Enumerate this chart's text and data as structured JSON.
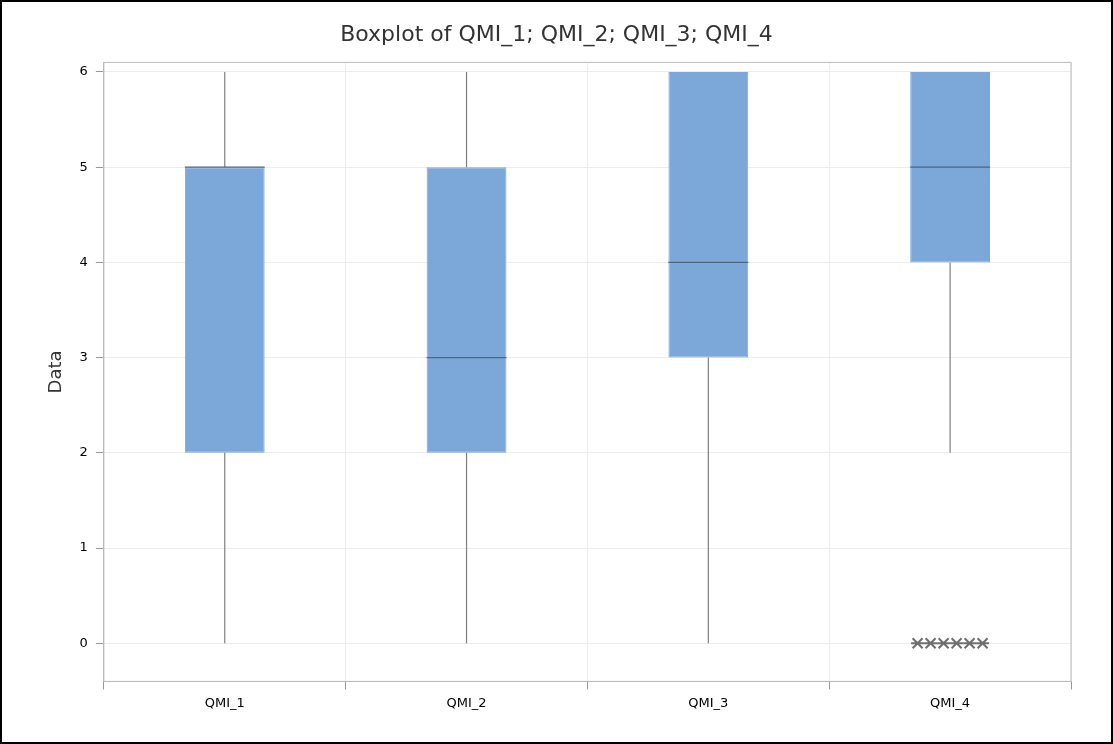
{
  "chart_data": {
    "type": "box",
    "title": "Boxplot of QMI_1; QMI_2; QMI_3; QMI_4",
    "ylabel": "Data",
    "categories": [
      "QMI_1",
      "QMI_2",
      "QMI_3",
      "QMI_4"
    ],
    "color": "#7ba7d9",
    "ylim": [
      -0.4,
      6.1
    ],
    "yticks": [
      0,
      1,
      2,
      3,
      4,
      5,
      6
    ],
    "grid": true,
    "legend": false,
    "marker": "cross",
    "boxes": [
      {
        "low": 0,
        "q1": 2,
        "median": 5,
        "q3": 5,
        "high": 6
      },
      {
        "low": 0,
        "q1": 2,
        "median": 3,
        "q3": 5,
        "high": 6
      },
      {
        "low": 0,
        "q1": 3,
        "median": 4,
        "q3": 6,
        "high": 6
      },
      {
        "low": 2,
        "q1": 4,
        "median": 5,
        "q3": 6,
        "high": 6,
        "outliers": [
          0,
          0,
          0,
          0,
          0,
          0
        ]
      }
    ]
  }
}
